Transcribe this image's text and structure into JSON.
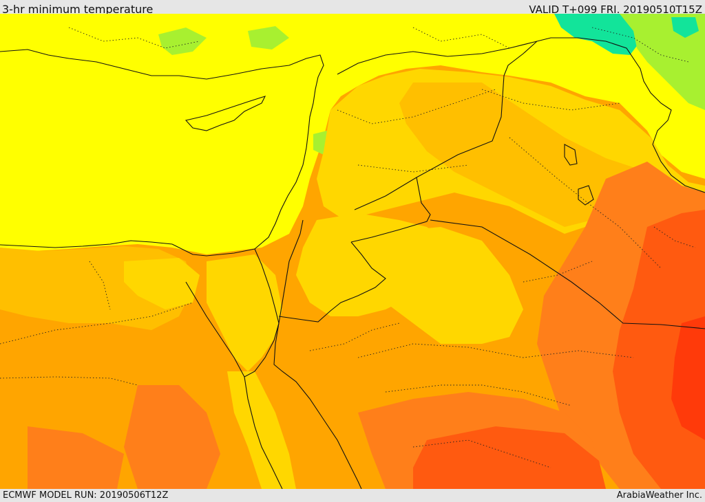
{
  "header": {
    "title": "3-hr minimum temperature",
    "valid": "VALID T+099 FRI. 20190510T15Z"
  },
  "footer": {
    "model_run": "ECMWF MODEL RUN: 20190506T12Z",
    "credit": "ArabiaWeather Inc."
  },
  "colors": {
    "cool_green": "#12e49a",
    "light_green": "#a8f030",
    "yellow": "#ffff00",
    "gold": "#ffd700",
    "light_orange": "#ffbf00",
    "orange": "#ffa500",
    "dark_orange": "#ff7f1a",
    "red_orange": "#ff5a10",
    "red": "#ff3a0a"
  }
}
